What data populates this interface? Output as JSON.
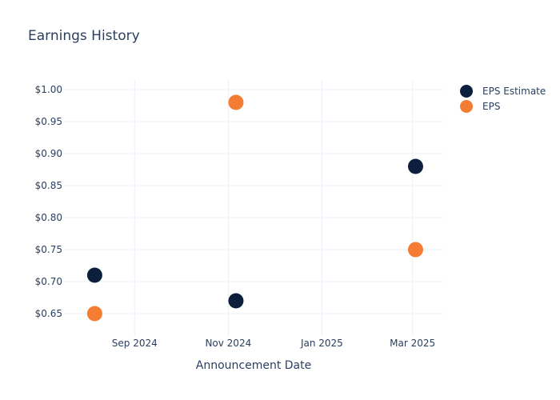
{
  "chart_data": {
    "type": "scatter",
    "title": "Earnings History",
    "xlabel": "Announcement Date",
    "ylabel": "",
    "x_ticks": [
      "Sep 2024",
      "Nov 2024",
      "Jan 2025",
      "Mar 2025"
    ],
    "x_tick_dates": [
      "2024-09-01",
      "2024-11-01",
      "2025-01-01",
      "2025-03-01"
    ],
    "y_ticks": [
      "$0.65",
      "$0.70",
      "$0.75",
      "$0.80",
      "$0.85",
      "$0.90",
      "$0.95",
      "$1.00"
    ],
    "y_tick_values": [
      0.65,
      0.7,
      0.75,
      0.8,
      0.85,
      0.9,
      0.95,
      1.0
    ],
    "xlim": [
      "2024-07-17",
      "2025-03-21"
    ],
    "ylim": [
      0.615,
      1.015
    ],
    "grid": true,
    "legend_position": "top-right",
    "series": [
      {
        "name": "EPS Estimate",
        "color": "#0c1f3c",
        "points": [
          {
            "x": "2024-08-06",
            "y": 0.71
          },
          {
            "x": "2024-11-06",
            "y": 0.67
          },
          {
            "x": "2025-03-03",
            "y": 0.88
          }
        ]
      },
      {
        "name": "EPS",
        "color": "#f47c33",
        "points": [
          {
            "x": "2024-08-06",
            "y": 0.65
          },
          {
            "x": "2024-11-06",
            "y": 0.98
          },
          {
            "x": "2025-03-03",
            "y": 0.75
          }
        ]
      }
    ]
  }
}
